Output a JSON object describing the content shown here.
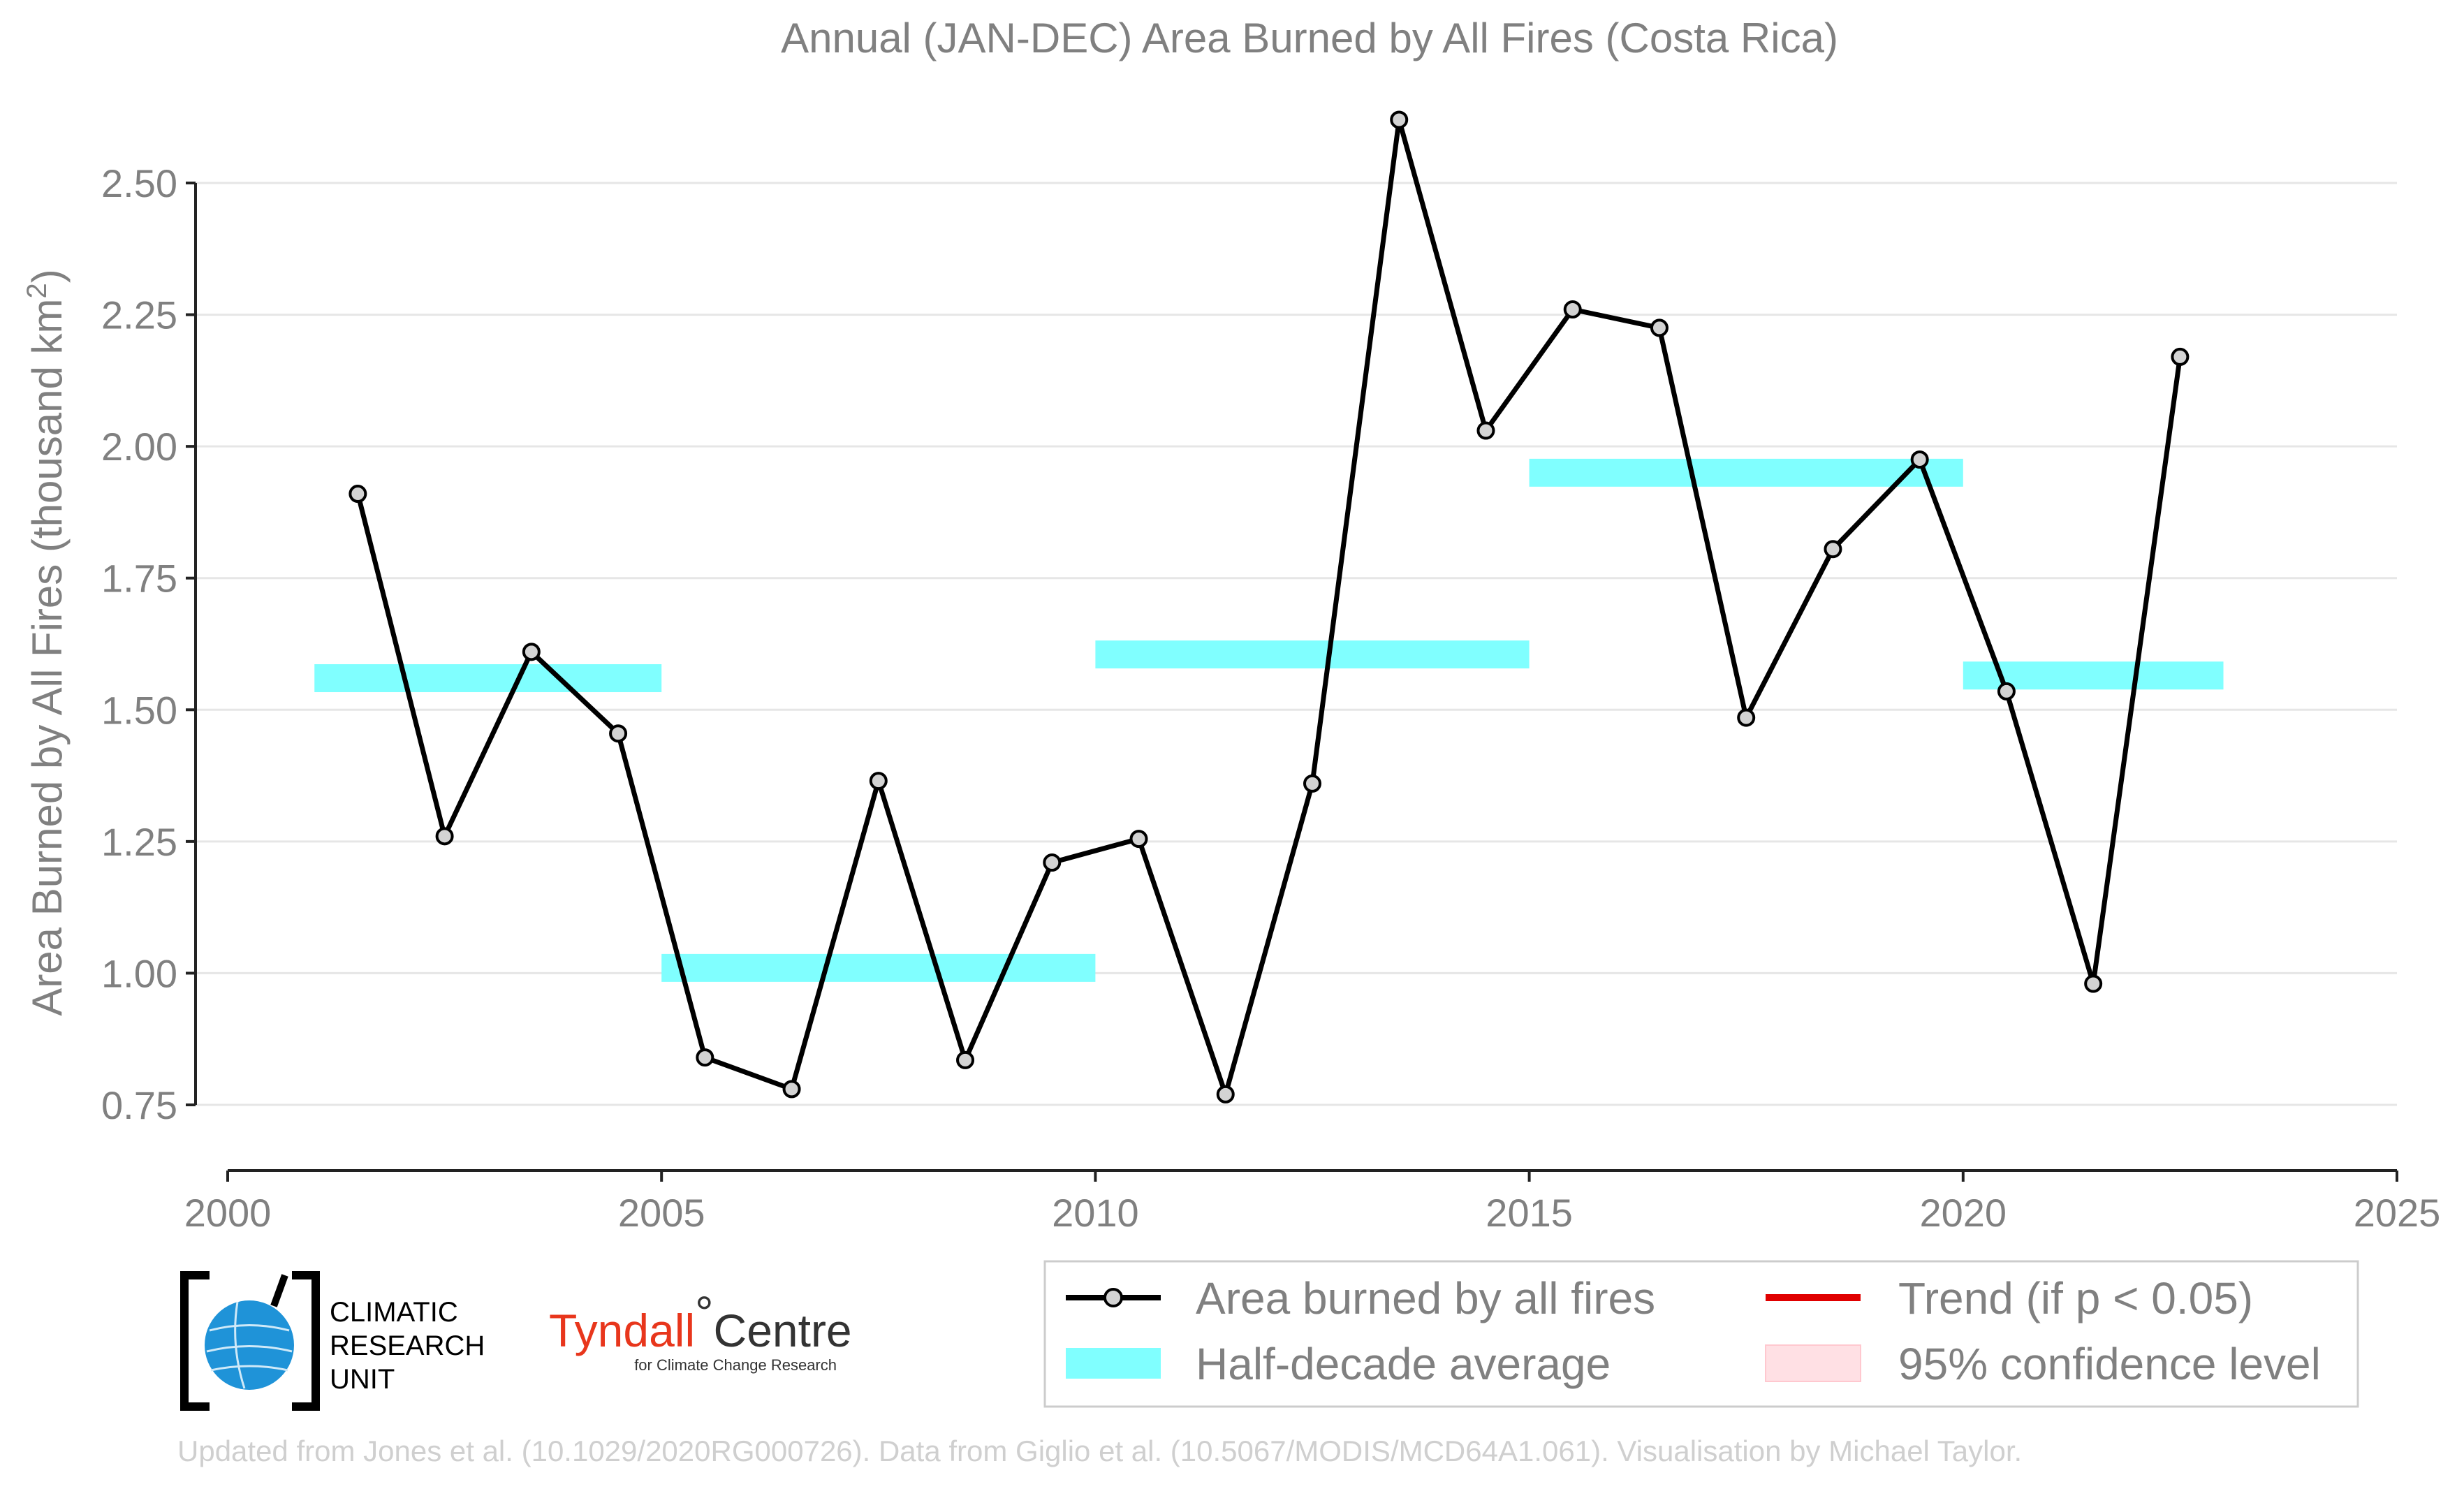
{
  "chart_data": {
    "type": "line",
    "title": "Annual (JAN-DEC) Area Burned by All Fires (Costa Rica)",
    "ylabel": "Area Burned by All Fires (thousand km",
    "ylabel_superscript": "2",
    "ylabel_suffix": ")",
    "xlim": [
      2000,
      2025
    ],
    "ylim": [
      0.75,
      2.5
    ],
    "x_ticks": [
      "2000",
      "2005",
      "2010",
      "2015",
      "2020",
      "2025"
    ],
    "y_ticks": [
      "0.75",
      "1.00",
      "1.25",
      "1.50",
      "1.75",
      "2.00",
      "2.25",
      "2.50"
    ],
    "grid": "horizontal",
    "series": [
      {
        "name": "Area burned by all fires",
        "color": "#000000",
        "marker_fill": "#d3d3d3",
        "x": [
          2001.5,
          2002.5,
          2003.5,
          2004.5,
          2005.5,
          2006.5,
          2007.5,
          2008.5,
          2009.5,
          2010.5,
          2011.5,
          2012.5,
          2013.5,
          2014.5,
          2015.5,
          2016.5,
          2017.5,
          2018.5,
          2019.5,
          2020.5,
          2021.5,
          2022.5
        ],
        "values": [
          1.91,
          1.26,
          1.61,
          1.455,
          0.84,
          0.78,
          1.365,
          0.835,
          1.21,
          1.255,
          0.77,
          1.36,
          2.62,
          2.03,
          2.26,
          2.225,
          1.485,
          1.805,
          1.975,
          1.535,
          0.98,
          2.17
        ]
      }
    ],
    "half_decade_average": {
      "name": "Half-decade average",
      "color": "#80ffff",
      "segments": [
        {
          "x0": 2001,
          "x1": 2005,
          "value": 1.56
        },
        {
          "x0": 2005,
          "x1": 2010,
          "value": 1.01
        },
        {
          "x0": 2010,
          "x1": 2015,
          "value": 1.605
        },
        {
          "x0": 2015,
          "x1": 2020,
          "value": 1.95
        },
        {
          "x0": 2020,
          "x1": 2023,
          "value": 1.565
        }
      ]
    },
    "legend": [
      {
        "label": "Area burned by all fires",
        "kind": "line-marker",
        "color": "#000000"
      },
      {
        "label": "Trend (if p < 0.05)",
        "kind": "line",
        "color": "#e00000"
      },
      {
        "label": "Half-decade average",
        "kind": "band",
        "color": "#80ffff"
      },
      {
        "label": "95% confidence level",
        "kind": "patch",
        "color": "#ffe0e4"
      }
    ],
    "legend_placement": "bottom-right"
  },
  "logos": {
    "cru": [
      "CLIMATIC",
      "RESEARCH",
      "UNIT"
    ],
    "tyndall_main": "Tyndall",
    "tyndall_degree": "°",
    "tyndall_centre": "Centre",
    "tyndall_sub": "for Climate Change Research"
  },
  "footer": "Updated from Jones et al. (10.1029/2020RG000726). Data from Giglio et al. (10.5067/MODIS/MCD64A1.061). Visualisation by Michael Taylor."
}
